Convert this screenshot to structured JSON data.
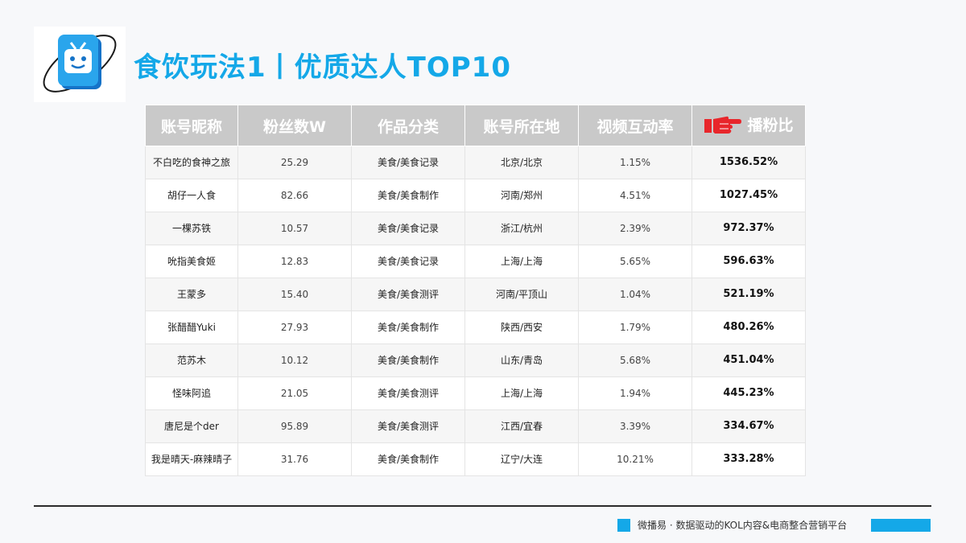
{
  "header": {
    "title": "食饮玩法1丨优质达人TOP10"
  },
  "table": {
    "columns": [
      "账号昵称",
      "粉丝数W",
      "作品分类",
      "账号所在地",
      "视频互动率",
      "播粉比"
    ],
    "rows": [
      {
        "name": "不白吃的食神之旅",
        "fans": "25.29",
        "category": "美食/美食记录",
        "location": "北京/北京",
        "rate": "1.15%",
        "ratio": "1536.52%"
      },
      {
        "name": "胡仔一人食",
        "fans": "82.66",
        "category": "美食/美食制作",
        "location": "河南/郑州",
        "rate": "4.51%",
        "ratio": "1027.45%"
      },
      {
        "name": "一棵苏铁",
        "fans": "10.57",
        "category": "美食/美食记录",
        "location": "浙江/杭州",
        "rate": "2.39%",
        "ratio": "972.37%"
      },
      {
        "name": "吮指美食姬",
        "fans": "12.83",
        "category": "美食/美食记录",
        "location": "上海/上海",
        "rate": "5.65%",
        "ratio": "596.63%"
      },
      {
        "name": "王蒙多",
        "fans": "15.40",
        "category": "美食/美食测评",
        "location": "河南/平顶山",
        "rate": "1.04%",
        "ratio": "521.19%"
      },
      {
        "name": "张醋醋Yuki",
        "fans": "27.93",
        "category": "美食/美食制作",
        "location": "陕西/西安",
        "rate": "1.79%",
        "ratio": "480.26%"
      },
      {
        "name": "范苏木",
        "fans": "10.12",
        "category": "美食/美食制作",
        "location": "山东/青岛",
        "rate": "5.68%",
        "ratio": "451.04%"
      },
      {
        "name": "怪味阿追",
        "fans": "21.05",
        "category": "美食/美食测评",
        "location": "上海/上海",
        "rate": "1.94%",
        "ratio": "445.23%"
      },
      {
        "name": "唐尼是个der",
        "fans": "95.89",
        "category": "美食/美食测评",
        "location": "江西/宜春",
        "rate": "3.39%",
        "ratio": "334.67%"
      },
      {
        "name": "我是晴天-麻辣晴子",
        "fans": "31.76",
        "category": "美食/美食制作",
        "location": "辽宁/大连",
        "rate": "10.21%",
        "ratio": "333.28%"
      }
    ]
  },
  "icons": {
    "logo": "tv-logo-icon",
    "pointer": "pointing-hand-icon"
  },
  "colors": {
    "accent": "#14a8e8",
    "header_bg": "#c9c9c9",
    "pointer": "#e8262b"
  },
  "footer": {
    "text": "微播易 · 数据驱动的KOL内容&电商整合营销平台"
  }
}
